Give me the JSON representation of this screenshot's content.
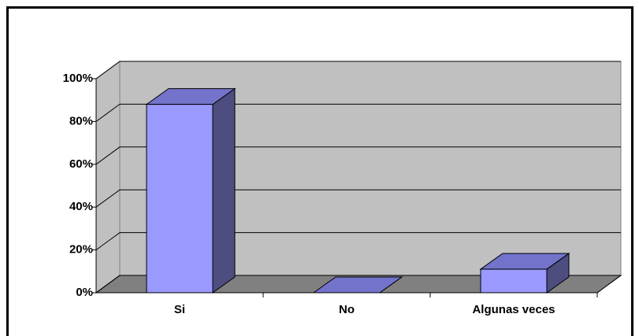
{
  "chart_data": {
    "type": "bar3d",
    "categories": [
      "Si",
      "No",
      "Algunas veces"
    ],
    "values": [
      88,
      0,
      11
    ],
    "color": "#9999ff",
    "ylim": [
      0,
      100
    ],
    "yticks": [
      {
        "value": 0,
        "label": "0%"
      },
      {
        "value": 20,
        "label": "20%"
      },
      {
        "value": 40,
        "label": "40%"
      },
      {
        "value": 60,
        "label": "60%"
      },
      {
        "value": 80,
        "label": "80%"
      },
      {
        "value": 100,
        "label": "100%"
      }
    ],
    "grid": true
  }
}
